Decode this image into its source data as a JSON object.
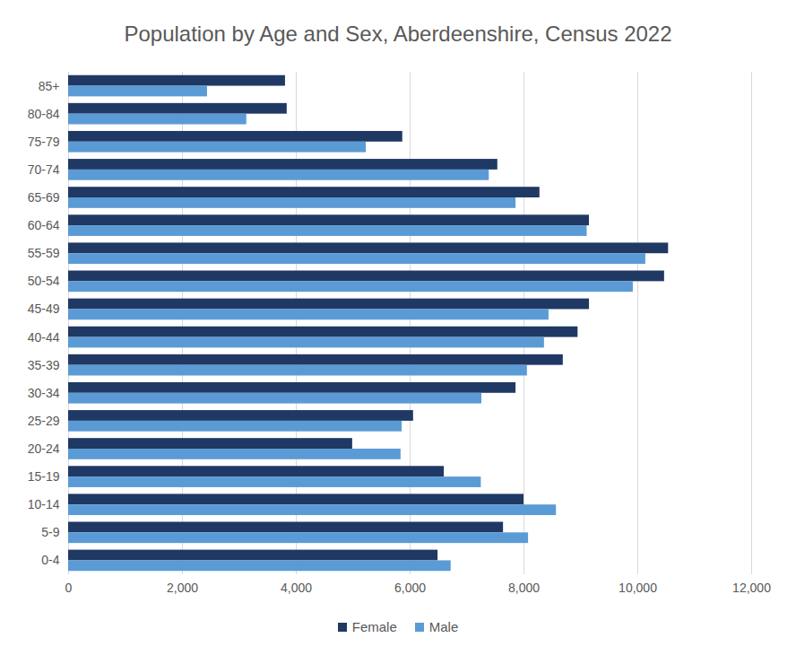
{
  "chart_data": {
    "type": "bar",
    "orientation": "horizontal",
    "title": "Population by Age and Sex, Aberdeenshire, Census 2022",
    "categories": [
      "0-4",
      "5-9",
      "10-14",
      "15-19",
      "20-24",
      "25-29",
      "30-34",
      "35-39",
      "40-44",
      "45-49",
      "50-54",
      "55-59",
      "60-64",
      "65-69",
      "70-74",
      "75-79",
      "80-84",
      "85+"
    ],
    "series": [
      {
        "name": "Female",
        "color": "#203864",
        "values": [
          6490,
          7640,
          8000,
          6600,
          4990,
          6060,
          7860,
          8690,
          8950,
          9150,
          10470,
          10540,
          9150,
          8280,
          7540,
          5870,
          3840,
          3810
        ]
      },
      {
        "name": "Male",
        "color": "#5b9bd5",
        "values": [
          6720,
          8080,
          8570,
          7250,
          5840,
          5860,
          7260,
          8060,
          8360,
          8440,
          9920,
          10140,
          9110,
          7860,
          7390,
          5230,
          3130,
          2440
        ]
      }
    ],
    "xlim": [
      0,
      12000
    ],
    "xticks": [
      0,
      {
        "value": 2000,
        "label": "2,000"
      },
      {
        "value": 4000,
        "label": "4,000"
      },
      {
        "value": 6000,
        "label": "6,000"
      },
      {
        "value": 8000,
        "label": "8,000"
      },
      {
        "value": 10000,
        "label": "10,000"
      },
      {
        "value": 12000,
        "label": "12,000"
      }
    ],
    "grid": true,
    "legend": "bottom"
  }
}
